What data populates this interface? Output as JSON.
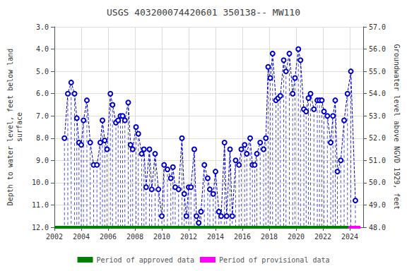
{
  "chart_data": {
    "type": "line",
    "title": "USGS 403200074420601 350138-- MW110",
    "ylabel": "Depth to water level, feet below land\nsurface",
    "y2label": "Groundwater level above NGVD 1929, feet",
    "xlim": [
      2002.0,
      2025.0
    ],
    "xticks": [
      2002,
      2004,
      2006,
      2008,
      2010,
      2012,
      2014,
      2016,
      2018,
      2020,
      2022,
      2024
    ],
    "ylim": [
      12.0,
      3.0
    ],
    "yticks": [
      {
        "value": 3,
        "label": "3.0"
      },
      {
        "value": 4,
        "label": "4.0"
      },
      {
        "value": 5,
        "label": "5.0"
      },
      {
        "value": 6,
        "label": "6.0"
      },
      {
        "value": 7,
        "label": "7.0"
      },
      {
        "value": 8,
        "label": "8.0"
      },
      {
        "value": 9,
        "label": "9.0"
      },
      {
        "value": 10,
        "label": "10.0"
      },
      {
        "value": 11,
        "label": "11.0"
      },
      {
        "value": 12,
        "label": "12.0"
      }
    ],
    "y2lim": [
      48.0,
      57.0
    ],
    "y2ticks": [
      {
        "value": 57,
        "label": "57.0"
      },
      {
        "value": 56,
        "label": "56.0"
      },
      {
        "value": 55,
        "label": "55.0"
      },
      {
        "value": 54,
        "label": "54.0"
      },
      {
        "value": 53,
        "label": "53.0"
      },
      {
        "value": 52,
        "label": "52.0"
      },
      {
        "value": 51,
        "label": "51.0"
      },
      {
        "value": 50,
        "label": "50.0"
      },
      {
        "value": 49,
        "label": "49.0"
      },
      {
        "value": 48,
        "label": "48.0"
      }
    ],
    "grid": true,
    "legend": "bottom",
    "series": [
      {
        "color": "#0000cc",
        "marker": "circle",
        "line_style": "dashed",
        "x": [
          2002.75,
          2003.0,
          2003.25,
          2003.5,
          2003.67,
          2003.83,
          2004.0,
          2004.17,
          2004.42,
          2004.67,
          2004.92,
          2005.17,
          2005.42,
          2005.58,
          2005.75,
          2005.92,
          2006.17,
          2006.33,
          2006.58,
          2006.75,
          2006.92,
          2007.08,
          2007.25,
          2007.5,
          2007.67,
          2007.83,
          2008.08,
          2008.25,
          2008.5,
          2008.67,
          2008.83,
          2009.08,
          2009.25,
          2009.5,
          2009.75,
          2010.0,
          2010.17,
          2010.42,
          2010.67,
          2010.83,
          2011.0,
          2011.25,
          2011.5,
          2011.67,
          2011.83,
          2012.0,
          2012.17,
          2012.42,
          2012.58,
          2012.75,
          2012.92,
          2013.17,
          2013.42,
          2013.58,
          2013.83,
          2014.0,
          2014.25,
          2014.42,
          2014.67,
          2014.83,
          2015.08,
          2015.25,
          2015.5,
          2015.75,
          2015.92,
          2016.17,
          2016.33,
          2016.58,
          2016.75,
          2016.92,
          2017.08,
          2017.33,
          2017.58,
          2017.75,
          2017.92,
          2018.08,
          2018.25,
          2018.5,
          2018.67,
          2018.83,
          2019.08,
          2019.25,
          2019.5,
          2019.75,
          2019.92,
          2020.17,
          2020.33,
          2020.58,
          2020.75,
          2020.92,
          2021.08,
          2021.33,
          2021.58,
          2021.75,
          2021.92,
          2022.08,
          2022.33,
          2022.58,
          2022.75,
          2022.92,
          2023.08,
          2023.33,
          2023.58,
          2023.83,
          2024.08,
          2024.42
        ],
        "values": [
          8.0,
          6.0,
          5.5,
          6.0,
          7.1,
          8.2,
          8.3,
          7.2,
          6.3,
          8.2,
          9.2,
          9.2,
          8.2,
          7.2,
          8.1,
          8.5,
          6.0,
          6.5,
          7.3,
          7.2,
          7.0,
          7.0,
          7.2,
          6.4,
          8.3,
          8.5,
          7.5,
          7.8,
          8.7,
          8.5,
          10.2,
          8.5,
          10.3,
          8.7,
          10.3,
          11.5,
          9.2,
          9.4,
          9.8,
          9.3,
          10.2,
          10.3,
          8.0,
          10.5,
          11.5,
          10.2,
          10.2,
          8.5,
          11.5,
          11.8,
          11.3,
          9.2,
          9.8,
          10.3,
          10.5,
          9.5,
          11.3,
          11.5,
          8.2,
          11.5,
          8.5,
          11.5,
          9.0,
          9.2,
          8.5,
          8.3,
          8.7,
          8.0,
          9.2,
          9.2,
          8.7,
          8.2,
          8.5,
          8.0,
          4.8,
          5.3,
          4.2,
          6.3,
          6.2,
          6.1,
          4.5,
          5.0,
          4.2,
          6.0,
          5.3,
          4.0,
          4.5,
          6.7,
          6.8,
          6.2,
          6.0,
          6.7,
          6.3,
          6.3,
          6.3,
          6.8,
          7.0,
          8.2,
          7.0,
          6.3,
          9.5,
          9.0,
          7.2,
          6.0,
          5.0,
          10.8
        ]
      },
      {
        "name": "Period of approved data",
        "color": "#008000",
        "line_style": "solid",
        "x": [
          2002.0,
          2023.9
        ],
        "values": [
          12.0,
          12.0
        ]
      },
      {
        "name": "Period of provisional data",
        "color": "#ff00ff",
        "line_style": "solid",
        "x": [
          2023.9,
          2024.8
        ],
        "values": [
          12.0,
          12.0
        ]
      }
    ]
  }
}
